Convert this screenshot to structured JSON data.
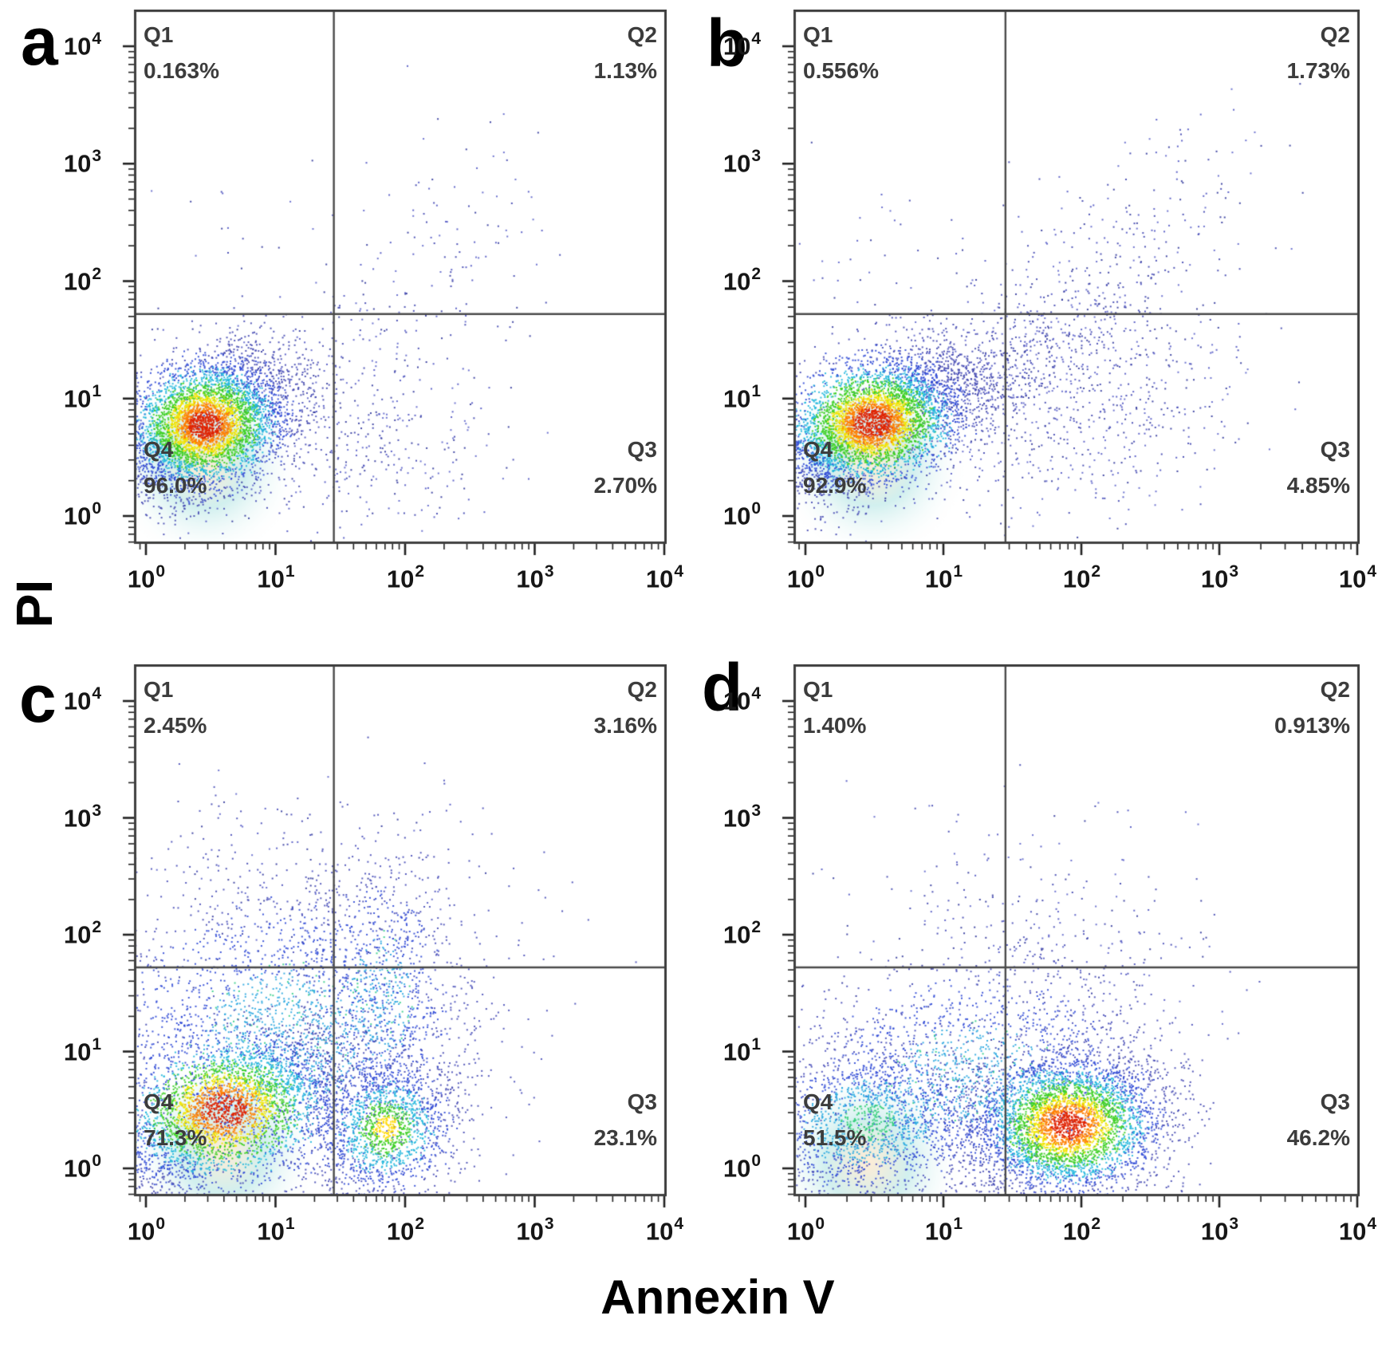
{
  "chart_data": {
    "type": "scatter",
    "subtype": "flow-cytometry-density",
    "xlabel": "Annexin V",
    "ylabel": "PI",
    "scale": "log-log",
    "axis_range_decades": [
      0,
      4
    ],
    "tick_exponents": [
      0,
      1,
      2,
      3,
      4
    ],
    "tick_labels": [
      "10^0",
      "10^1",
      "10^2",
      "10^3",
      "10^4"
    ],
    "grid": false,
    "legend": false,
    "gates": {
      "x_decade": 1.45,
      "y_decade": 1.72
    },
    "halo_colors": {
      "inner": "#ffedd6",
      "outer": "#d2f0ef"
    },
    "palette": {
      "hot": [
        [
          0.4,
          "#e02200"
        ],
        [
          0.62,
          "#ff7f00"
        ],
        [
          0.85,
          "#f2e400"
        ],
        [
          1.2,
          "#3ccf22"
        ],
        [
          1.55,
          "#20b7dd"
        ],
        [
          2.05,
          "#2f49d6"
        ],
        [
          9,
          "#4549b2"
        ]
      ],
      "warm": [
        [
          0.35,
          "#ffd900"
        ],
        [
          0.75,
          "#3ccf22"
        ],
        [
          1.25,
          "#20b7dd"
        ],
        [
          1.85,
          "#2f49d6"
        ],
        [
          9,
          "#4549b2"
        ]
      ],
      "cool": [
        [
          0.8,
          "#2aa7e0"
        ],
        [
          1.6,
          "#2f49d6"
        ],
        [
          9,
          "#474cb8"
        ]
      ],
      "cool2": [
        [
          0.5,
          "#34cf7a"
        ],
        [
          1.1,
          "#28a9e0"
        ],
        [
          1.8,
          "#2f49d6"
        ],
        [
          9,
          "#474cb8"
        ]
      ],
      "cool_speckle": "#35cf8a",
      "sparse_colors": [
        "#3f45b0",
        "#5157c4",
        "#6167cc",
        "#333a9d"
      ]
    },
    "panels": [
      {
        "label": "a",
        "quadrants": [
          {
            "name": "Q1",
            "value": "0.163%",
            "position": "top-left"
          },
          {
            "name": "Q2",
            "value": "1.13%",
            "position": "top-right"
          },
          {
            "name": "Q4",
            "value": "96.0%",
            "position": "bottom-left"
          },
          {
            "name": "Q3",
            "value": "2.70%",
            "position": "bottom-right"
          }
        ],
        "clusters": [
          {
            "cx": 0.45,
            "cy": 0.78,
            "sx": 0.33,
            "sy": 0.3,
            "rho": 0.35,
            "n": 4800,
            "type": "hot",
            "halo": true
          },
          {
            "cx": 1.15,
            "cy": 0.75,
            "sx": 0.6,
            "sy": 0.45,
            "rho": 0.15,
            "n": 550,
            "type": "sparse",
            "halo": false
          },
          {
            "cx": 2.0,
            "cy": 0.5,
            "sx": 0.5,
            "sy": 0.35,
            "rho": 0.0,
            "n": 100,
            "type": "sparse",
            "halo": false
          },
          {
            "cx": 2.15,
            "cy": 2.15,
            "sx": 0.42,
            "sy": 0.55,
            "rho": 0.25,
            "n": 150,
            "type": "sparse",
            "halo": false
          },
          {
            "cx": 0.7,
            "cy": 2.3,
            "sx": 0.45,
            "sy": 0.45,
            "rho": 0.0,
            "n": 18,
            "type": "sparse",
            "halo": false
          }
        ]
      },
      {
        "label": "b",
        "quadrants": [
          {
            "name": "Q1",
            "value": "0.556%",
            "position": "top-left"
          },
          {
            "name": "Q2",
            "value": "1.73%",
            "position": "top-right"
          },
          {
            "name": "Q4",
            "value": "92.9%",
            "position": "bottom-left"
          },
          {
            "name": "Q3",
            "value": "4.85%",
            "position": "bottom-right"
          }
        ],
        "clusters": [
          {
            "cx": 0.48,
            "cy": 0.8,
            "sx": 0.35,
            "sy": 0.3,
            "rho": 0.45,
            "n": 4800,
            "type": "hot",
            "halo": true
          },
          {
            "cx": 1.3,
            "cy": 1.15,
            "sx": 0.55,
            "sy": 0.45,
            "rho": 0.75,
            "n": 900,
            "type": "sparse",
            "halo": false
          },
          {
            "cx": 2.1,
            "cy": 0.85,
            "sx": 0.55,
            "sy": 0.45,
            "rho": 0.3,
            "n": 500,
            "type": "sparse",
            "halo": false
          },
          {
            "cx": 2.3,
            "cy": 2.3,
            "sx": 0.5,
            "sy": 0.55,
            "rho": 0.4,
            "n": 230,
            "type": "sparse",
            "halo": false
          },
          {
            "cx": 0.7,
            "cy": 2.1,
            "sx": 0.5,
            "sy": 0.5,
            "rho": 0.0,
            "n": 60,
            "type": "sparse",
            "halo": false
          }
        ]
      },
      {
        "label": "c",
        "quadrants": [
          {
            "name": "Q1",
            "value": "2.45%",
            "position": "top-left"
          },
          {
            "name": "Q2",
            "value": "3.16%",
            "position": "top-right"
          },
          {
            "name": "Q4",
            "value": "71.3%",
            "position": "bottom-left"
          },
          {
            "name": "Q3",
            "value": "23.1%",
            "position": "bottom-right"
          }
        ],
        "clusters": [
          {
            "cx": 0.6,
            "cy": 0.5,
            "sx": 0.45,
            "sy": 0.35,
            "rho": 0.5,
            "n": 3400,
            "type": "hot",
            "halo": true
          },
          {
            "cx": 1.85,
            "cy": 0.35,
            "sx": 0.27,
            "sy": 0.3,
            "rho": 0.1,
            "n": 1500,
            "type": "warm",
            "halo": false
          },
          {
            "cx": 1.05,
            "cy": 1.1,
            "sx": 0.75,
            "sy": 0.7,
            "rho": 0.1,
            "n": 2800,
            "type": "cool",
            "halo": false
          },
          {
            "cx": 1.8,
            "cy": 1.45,
            "sx": 0.3,
            "sy": 0.6,
            "rho": 0.1,
            "n": 700,
            "type": "cool",
            "halo": false
          },
          {
            "cx": 1.1,
            "cy": 2.35,
            "sx": 0.7,
            "sy": 0.45,
            "rho": 0.0,
            "n": 170,
            "type": "sparse",
            "halo": false
          }
        ]
      },
      {
        "label": "d",
        "quadrants": [
          {
            "name": "Q1",
            "value": "1.40%",
            "position": "top-left"
          },
          {
            "name": "Q2",
            "value": "0.913%",
            "position": "top-right"
          },
          {
            "name": "Q4",
            "value": "51.5%",
            "position": "bottom-left"
          },
          {
            "name": "Q3",
            "value": "46.2%",
            "position": "bottom-right"
          }
        ],
        "clusters": [
          {
            "cx": 1.9,
            "cy": 0.38,
            "sx": 0.34,
            "sy": 0.3,
            "rho": 0.1,
            "n": 4200,
            "type": "hot",
            "halo": false
          },
          {
            "cx": 0.45,
            "cy": 0.4,
            "sx": 0.4,
            "sy": 0.32,
            "rho": 0.3,
            "n": 1500,
            "type": "cool2",
            "halo": true
          },
          {
            "cx": 1.2,
            "cy": 0.8,
            "sx": 0.65,
            "sy": 0.5,
            "rho": 0.2,
            "n": 1600,
            "type": "cool",
            "halo": false
          },
          {
            "cx": 1.55,
            "cy": 1.75,
            "sx": 0.65,
            "sy": 0.55,
            "rho": 0.1,
            "n": 280,
            "type": "sparse",
            "halo": false
          },
          {
            "cx": 1.3,
            "cy": 2.6,
            "sx": 0.6,
            "sy": 0.4,
            "rho": 0.0,
            "n": 45,
            "type": "sparse",
            "halo": false
          }
        ]
      }
    ]
  }
}
